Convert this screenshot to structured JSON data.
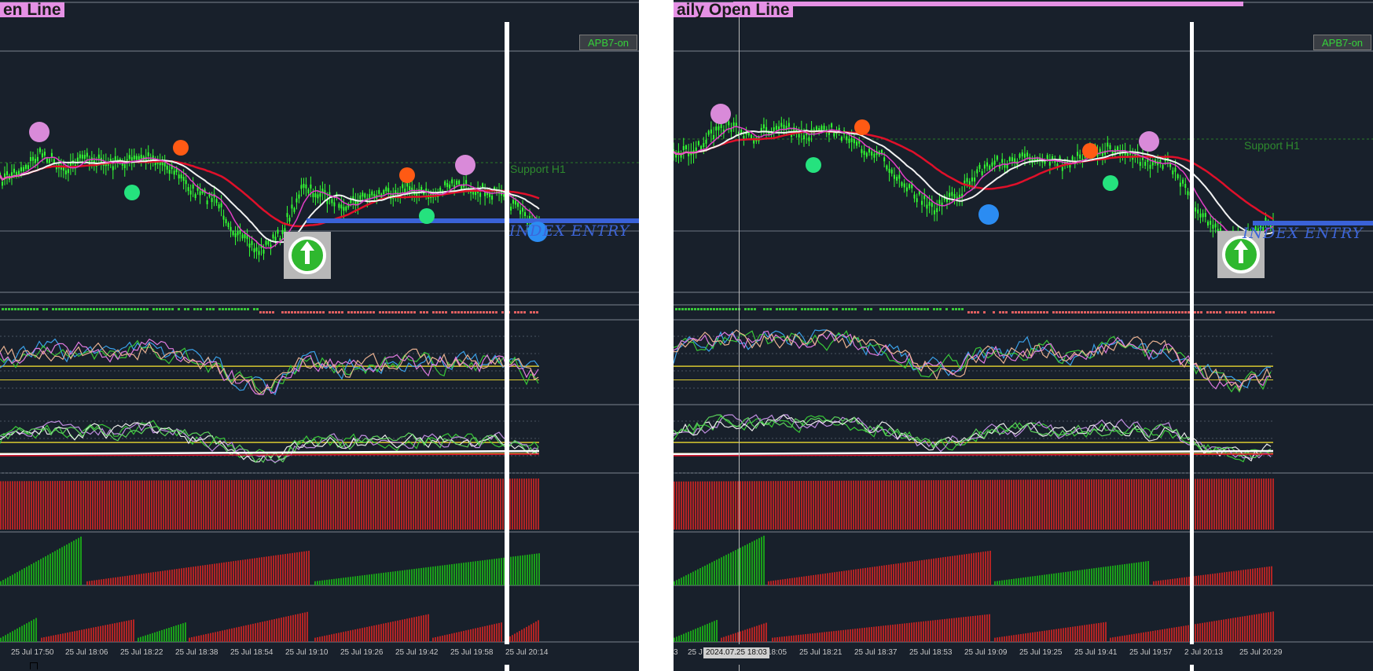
{
  "colors": {
    "background": "#18202b",
    "grid": "#3a4452",
    "candle": "#33ff33",
    "ma_red": "#e0102a",
    "ma_white": "#f2f2f2",
    "ma_pink": "#e23ec6",
    "title_bg": "#e591e5",
    "entry_line": "#3a62d8",
    "hist_red": "#b22424",
    "hist_green": "#1a9e1a"
  },
  "left_chart": {
    "title_tag": "en Line",
    "button": "APB7-on",
    "support_label": "Support H1",
    "entry_label": "INDEX ENTRY",
    "entry_icon": "up-arrow-circle-icon",
    "time_ticks": [
      "25 Jul 17:50",
      "25 Jul 18:06",
      "25 Jul 18:22",
      "25 Jul 18:38",
      "25 Jul 18:54",
      "25 Jul 19:10",
      "25 Jul 19:26",
      "25 Jul 19:42",
      "25 Jul 19:58",
      "25 Jul 20:14"
    ]
  },
  "right_chart": {
    "title_tag": "aily Open Line",
    "button": "APB7-on",
    "support_label": "Support H1",
    "entry_label": "INDEX ENTRY",
    "entry_icon": "up-arrow-circle-icon",
    "crosshair_time": "2024.07.25 18:03",
    "time_ticks": [
      "3",
      "25 J",
      "18:05",
      "25 Jul 18:21",
      "25 Jul 18:37",
      "25 Jul 18:53",
      "25 Jul 19:09",
      "25 Jul 19:25",
      "25 Jul 19:41",
      "25 Jul 19:57",
      "2 Jul 20:13",
      "25 Jul 20:29"
    ]
  }
}
